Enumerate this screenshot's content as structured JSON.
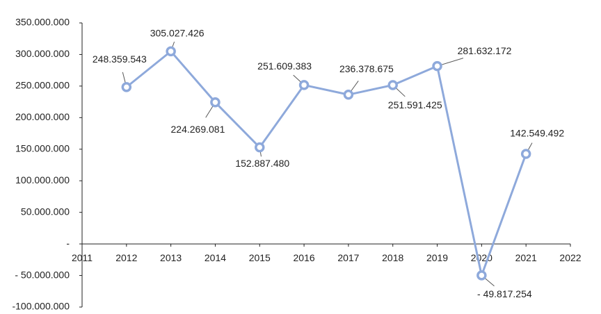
{
  "chart_data": {
    "type": "line",
    "x": [
      2012,
      2013,
      2014,
      2015,
      2016,
      2017,
      2018,
      2019,
      2020,
      2021
    ],
    "values": [
      248359543,
      305027426,
      224269081,
      152887480,
      251609383,
      236378675,
      251591425,
      281632172,
      -49817254,
      142549492
    ],
    "value_labels": [
      "248.359.543",
      "305.027.426",
      "224.269.081",
      "152.887.480",
      "251.609.383",
      "236.378.675",
      "251.591.425",
      "281.632.172",
      "- 49.817.254",
      "142.549.492"
    ],
    "color": "#8ea9db",
    "xlim": [
      2011,
      2022
    ],
    "xticks": [
      2011,
      2012,
      2013,
      2014,
      2015,
      2016,
      2017,
      2018,
      2019,
      2020,
      2021,
      2022
    ],
    "ylim": [
      -100000000,
      350000000
    ],
    "yticks": [
      {
        "value": 350000000,
        "label": "350.000.000"
      },
      {
        "value": 300000000,
        "label": "300.000.000"
      },
      {
        "value": 250000000,
        "label": "250.000.000"
      },
      {
        "value": 200000000,
        "label": "200.000.000"
      },
      {
        "value": 150000000,
        "label": "150.000.000"
      },
      {
        "value": 100000000,
        "label": "100.000.000"
      },
      {
        "value": 50000000,
        "label": "50.000.000"
      },
      {
        "value": 0,
        "label": "-"
      },
      {
        "value": -50000000,
        "label": "- 50.000.000"
      },
      {
        "value": -100000000,
        "label": "-100.000.000"
      }
    ]
  }
}
